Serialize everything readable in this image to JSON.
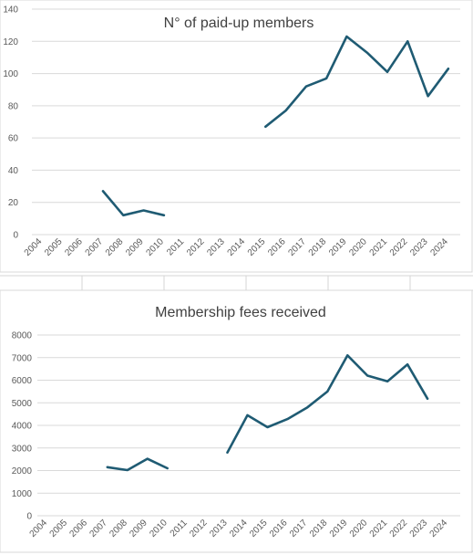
{
  "chart_data": [
    {
      "type": "line",
      "title": "N° of paid-up members",
      "xlabel": "",
      "ylabel": "",
      "categories": [
        "2004",
        "2005",
        "2006",
        "2007",
        "2008",
        "2009",
        "2010",
        "2011",
        "2012",
        "2013",
        "2014",
        "2015",
        "2016",
        "2017",
        "2018",
        "2019",
        "2020",
        "2021",
        "2022",
        "2023",
        "2024"
      ],
      "series": [
        {
          "values": [
            null,
            null,
            null,
            27,
            12,
            15,
            12,
            null,
            null,
            null,
            null,
            67,
            77,
            92,
            97,
            123,
            113,
            101,
            120,
            86,
            103
          ]
        }
      ],
      "ylim": [
        0,
        140
      ],
      "yticks": [
        0,
        20,
        40,
        60,
        80,
        100,
        120,
        140
      ],
      "grid": true,
      "legend": "none",
      "color": "#1f5b73"
    },
    {
      "type": "line",
      "title": "Membership fees received",
      "xlabel": "",
      "ylabel": "",
      "categories": [
        "2004",
        "2005",
        "2006",
        "2007",
        "2008",
        "2009",
        "2010",
        "2011",
        "2012",
        "2013",
        "2014",
        "2015",
        "2016",
        "2017",
        "2018",
        "2019",
        "2020",
        "2021",
        "2022",
        "2023",
        "2024"
      ],
      "series": [
        {
          "values": [
            null,
            null,
            null,
            2150,
            2020,
            2520,
            2100,
            null,
            null,
            2800,
            4450,
            3920,
            4280,
            4800,
            5500,
            7100,
            6200,
            5950,
            6700,
            5180,
            null
          ]
        }
      ],
      "ylim": [
        0,
        8000
      ],
      "yticks": [
        0,
        1000,
        2000,
        3000,
        4000,
        5000,
        6000,
        7000,
        8000
      ],
      "grid": true,
      "legend": "none",
      "color": "#1f5b73"
    }
  ]
}
